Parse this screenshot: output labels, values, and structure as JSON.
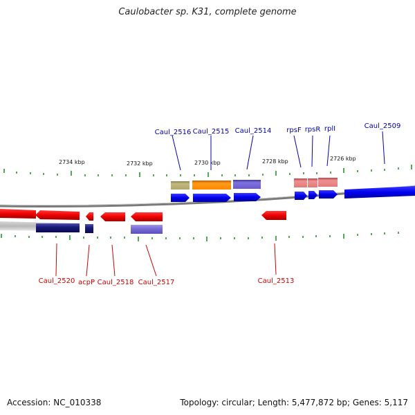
{
  "title": "Caulobacter sp. K31, complete genome",
  "footer": {
    "accession": "Accession: NC_010338",
    "summary": "Topology: circular; Length: 5,477,872 bp; Genes: 5,117"
  },
  "colors": {
    "forward_label": "#0000aa",
    "reverse_label": "#cc0000",
    "forward_gene": "#0000ee",
    "reverse_gene": "#ee0000",
    "backbone": "#888888",
    "tick": "#1a8a1a",
    "olive": "#b7ae6e",
    "orange": "#ff8c00",
    "purple": "#6a5acd",
    "pink": "#e07a7a",
    "navy": "#1a1a7a",
    "lavender": "#7b6fd6"
  },
  "kbp_labels": [
    "2734 kbp",
    "2732 kbp",
    "2730 kbp",
    "2728 kbp",
    "2726 kbp"
  ],
  "forward_labels": [
    "Caul_2516",
    "Caul_2515",
    "Caul_2514",
    "rpsF",
    "rpsR",
    "rplI",
    "Caul_2509"
  ],
  "reverse_labels": [
    "Caul_2520",
    "acpP",
    "Caul_2518",
    "Caul_2517",
    "Caul_2513"
  ]
}
